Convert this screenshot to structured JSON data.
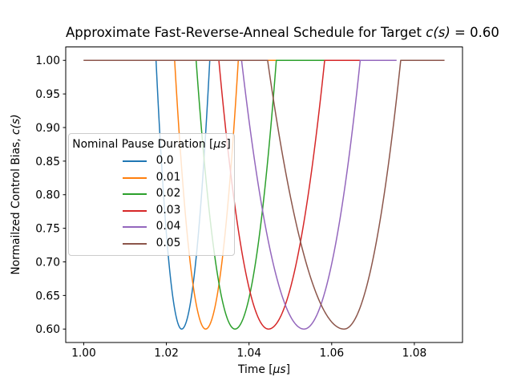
{
  "figure": {
    "title": {
      "prefix": "Approximate Fast-Reverse-Anneal Schedule for Target ",
      "math": "c(s)",
      "suffix": " = 0.60"
    },
    "xlabel": {
      "prefix": "Time [",
      "math": "μs",
      "suffix": "]"
    },
    "ylabel": {
      "prefix": "Normailzed Control Bias, ",
      "math": "c(s)",
      "suffix": ""
    }
  },
  "legend": {
    "title": {
      "prefix": "Nominal Pause Duration [",
      "math": "μs",
      "suffix": "]"
    },
    "entries": [
      {
        "label": "0.0",
        "color": "#1f77b4"
      },
      {
        "label": "0.01",
        "color": "#ff7f0e"
      },
      {
        "label": "0.02",
        "color": "#2ca02c"
      },
      {
        "label": "0.03",
        "color": "#d62728"
      },
      {
        "label": "0.04",
        "color": "#9467bd"
      },
      {
        "label": "0.05",
        "color": "#8c564b"
      }
    ]
  },
  "chart_data": {
    "type": "line",
    "title": "Approximate Fast-Reverse-Anneal Schedule for Target c(s) = 0.60",
    "xlabel": "Time [μs]",
    "ylabel": "Normailzed Control Bias, c(s)",
    "xlim": [
      0.99565,
      1.09165
    ],
    "ylim": [
      0.58,
      1.02
    ],
    "x_ticks": [
      1.0,
      1.02,
      1.04,
      1.06,
      1.08
    ],
    "x_tick_labels": [
      "1.00",
      "1.02",
      "1.04",
      "1.06",
      "1.08"
    ],
    "y_ticks": [
      0.6,
      0.65,
      0.7,
      0.75,
      0.8,
      0.85,
      0.9,
      0.95,
      1.0
    ],
    "y_tick_labels": [
      "0.60",
      "0.65",
      "0.70",
      "0.75",
      "0.80",
      "0.85",
      "0.90",
      "0.95",
      "1.00"
    ],
    "grid": false,
    "legend_position": "center left",
    "bias_top": 1.0,
    "bias_target": 0.6,
    "curve_shape": "flat at 1.0, parabolic dip to 0.6, flat at 1.0",
    "series": [
      {
        "name": "0.0",
        "color": "#1f77b4",
        "t_start": 1.0,
        "dip_start": 1.0175,
        "dip_bottom": 1.0237,
        "dip_end": 1.0305,
        "t_end": 1.0376
      },
      {
        "name": "0.01",
        "color": "#ff7f0e",
        "t_start": 1.0,
        "dip_start": 1.022,
        "dip_bottom": 1.0295,
        "dip_end": 1.0374,
        "t_end": 1.0466
      },
      {
        "name": "0.02",
        "color": "#2ca02c",
        "t_start": 1.0,
        "dip_start": 1.0272,
        "dip_bottom": 1.0366,
        "dip_end": 1.0466,
        "t_end": 1.0583
      },
      {
        "name": "0.03",
        "color": "#d62728",
        "t_start": 1.0,
        "dip_start": 1.0327,
        "dip_bottom": 1.0447,
        "dip_end": 1.0583,
        "t_end": 1.0669
      },
      {
        "name": "0.04",
        "color": "#9467bd",
        "t_start": 1.0,
        "dip_start": 1.0382,
        "dip_bottom": 1.0533,
        "dip_end": 1.0669,
        "t_end": 1.0757
      },
      {
        "name": "0.05",
        "color": "#8c564b",
        "t_start": 1.0,
        "dip_start": 1.0445,
        "dip_bottom": 1.063,
        "dip_end": 1.0767,
        "t_end": 1.0873
      }
    ]
  }
}
